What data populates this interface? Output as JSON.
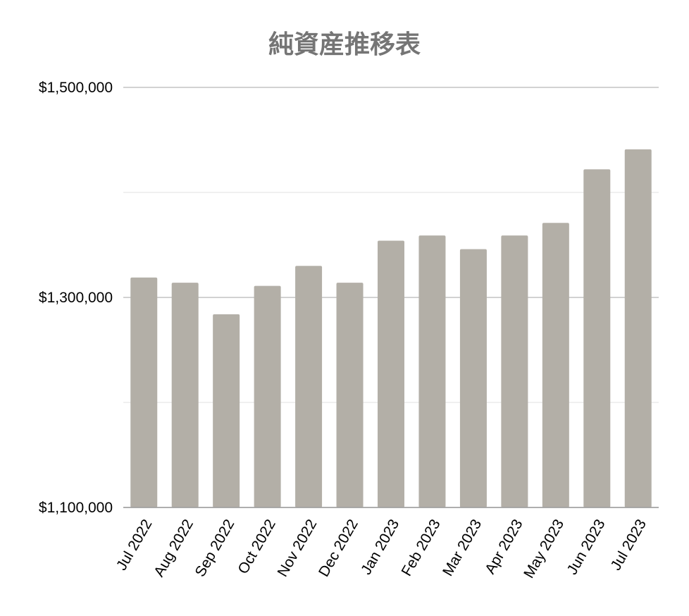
{
  "chart_data": {
    "type": "bar",
    "title": "純資産推移表",
    "xlabel": "",
    "ylabel": "",
    "categories": [
      "Jul 2022",
      "Aug 2022",
      "Sep 2022",
      "Oct 2022",
      "Nov 2022",
      "Dec 2022",
      "Jan 2023",
      "Feb 2023",
      "Mar 2023",
      "Apr 2023",
      "May 2023",
      "Jun 2023",
      "Jul 2023"
    ],
    "values": [
      1319000,
      1314000,
      1284000,
      1311000,
      1330000,
      1314000,
      1354000,
      1359000,
      1346000,
      1359000,
      1371000,
      1422000,
      1441000
    ],
    "ylim": [
      1100000,
      1500000
    ],
    "y_ticks": [
      1100000,
      1300000,
      1500000
    ],
    "y_tick_labels": [
      "$1,100,000",
      "$1,300,000",
      "$1,500,000"
    ],
    "y_minor_gridlines": [
      1200000,
      1400000
    ],
    "grid": true,
    "legend": "none",
    "bar_color": "#b3afa7",
    "title_color": "#757575"
  }
}
